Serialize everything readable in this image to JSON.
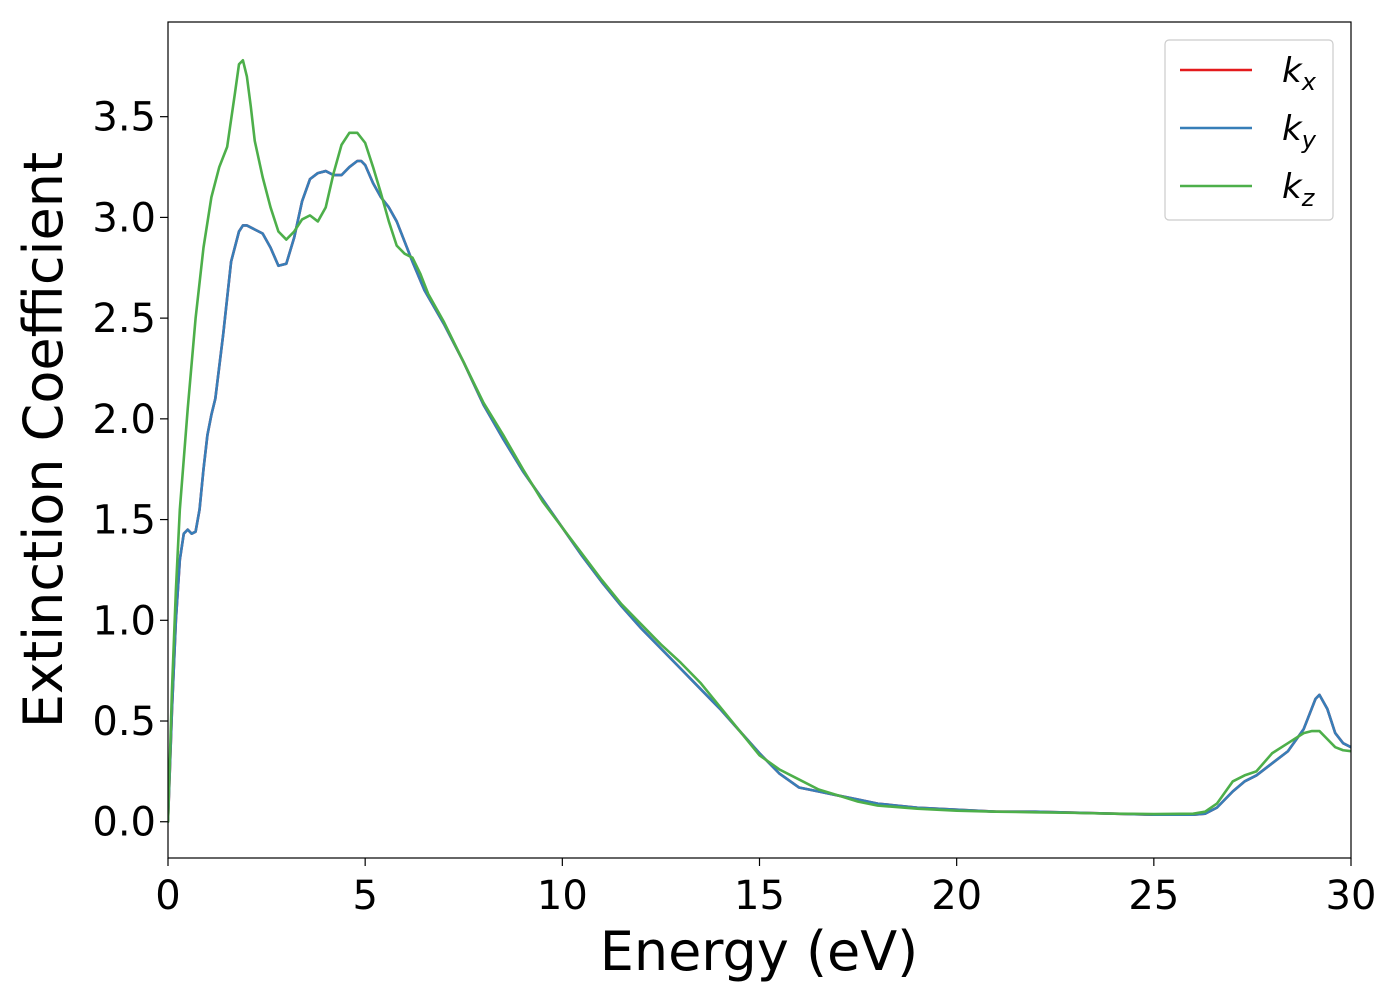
{
  "chart_data": {
    "type": "line",
    "title": "",
    "xlabel": "Energy (eV)",
    "ylabel": "Extinction Coefficient",
    "xlim": [
      0,
      30
    ],
    "ylim": [
      -0.18,
      3.97
    ],
    "xticks": [
      0,
      5,
      10,
      15,
      20,
      25,
      30
    ],
    "xtick_labels": [
      "0",
      "5",
      "10",
      "15",
      "20",
      "25",
      "30"
    ],
    "yticks": [
      0.0,
      0.5,
      1.0,
      1.5,
      2.0,
      2.5,
      3.0,
      3.5
    ],
    "ytick_labels": [
      "0.0",
      "0.5",
      "1.0",
      "1.5",
      "2.0",
      "2.5",
      "3.0",
      "3.5"
    ],
    "grid": false,
    "legend_position": "top-right",
    "series": [
      {
        "name": "k",
        "sub": "x",
        "color": "#e41a1c",
        "x": [
          0,
          0.1,
          0.2,
          0.3,
          0.4,
          0.5,
          0.6,
          0.7,
          0.8,
          0.9,
          1.0,
          1.1,
          1.2,
          1.4,
          1.6,
          1.8,
          1.9,
          2.0,
          2.2,
          2.4,
          2.6,
          2.8,
          3.0,
          3.2,
          3.4,
          3.6,
          3.8,
          4.0,
          4.2,
          4.4,
          4.6,
          4.8,
          4.9,
          5.0,
          5.2,
          5.4,
          5.6,
          5.8,
          6.0,
          6.2,
          6.5,
          7.0,
          7.5,
          8.0,
          8.5,
          9.0,
          9.5,
          10,
          10.5,
          11,
          11.5,
          12,
          12.5,
          13,
          13.5,
          14,
          14.5,
          15,
          15.5,
          16,
          16.5,
          17,
          17.5,
          18,
          19,
          20,
          21,
          22,
          23,
          24,
          25,
          26,
          26.3,
          26.6,
          27,
          27.3,
          27.6,
          28,
          28.4,
          28.8,
          29.0,
          29.1,
          29.2,
          29.4,
          29.6,
          29.8,
          30
        ],
        "y": [
          0.0,
          0.55,
          1.0,
          1.3,
          1.43,
          1.45,
          1.43,
          1.44,
          1.55,
          1.75,
          1.92,
          2.02,
          2.1,
          2.42,
          2.78,
          2.93,
          2.96,
          2.96,
          2.94,
          2.92,
          2.85,
          2.76,
          2.77,
          2.9,
          3.08,
          3.19,
          3.22,
          3.23,
          3.21,
          3.21,
          3.25,
          3.28,
          3.28,
          3.26,
          3.17,
          3.1,
          3.05,
          2.98,
          2.88,
          2.78,
          2.64,
          2.47,
          2.28,
          2.07,
          1.9,
          1.74,
          1.6,
          1.46,
          1.32,
          1.19,
          1.07,
          0.96,
          0.86,
          0.76,
          0.66,
          0.56,
          0.45,
          0.34,
          0.24,
          0.17,
          0.15,
          0.13,
          0.11,
          0.09,
          0.07,
          0.06,
          0.05,
          0.05,
          0.045,
          0.04,
          0.035,
          0.035,
          0.04,
          0.07,
          0.15,
          0.2,
          0.23,
          0.29,
          0.35,
          0.46,
          0.56,
          0.61,
          0.63,
          0.56,
          0.44,
          0.39,
          0.37
        ]
      },
      {
        "name": "k",
        "sub": "y",
        "color": "#377eb8",
        "x": [
          0,
          0.1,
          0.2,
          0.3,
          0.4,
          0.5,
          0.6,
          0.7,
          0.8,
          0.9,
          1.0,
          1.1,
          1.2,
          1.4,
          1.6,
          1.8,
          1.9,
          2.0,
          2.2,
          2.4,
          2.6,
          2.8,
          3.0,
          3.2,
          3.4,
          3.6,
          3.8,
          4.0,
          4.2,
          4.4,
          4.6,
          4.8,
          4.9,
          5.0,
          5.2,
          5.4,
          5.6,
          5.8,
          6.0,
          6.2,
          6.5,
          7.0,
          7.5,
          8.0,
          8.5,
          9.0,
          9.5,
          10,
          10.5,
          11,
          11.5,
          12,
          12.5,
          13,
          13.5,
          14,
          14.5,
          15,
          15.5,
          16,
          16.5,
          17,
          17.5,
          18,
          19,
          20,
          21,
          22,
          23,
          24,
          25,
          26,
          26.3,
          26.6,
          27,
          27.3,
          27.6,
          28,
          28.4,
          28.8,
          29.0,
          29.1,
          29.2,
          29.4,
          29.6,
          29.8,
          30
        ],
        "y": [
          0.0,
          0.55,
          1.0,
          1.3,
          1.43,
          1.45,
          1.43,
          1.44,
          1.55,
          1.75,
          1.92,
          2.02,
          2.1,
          2.42,
          2.78,
          2.93,
          2.96,
          2.96,
          2.94,
          2.92,
          2.85,
          2.76,
          2.77,
          2.9,
          3.08,
          3.19,
          3.22,
          3.23,
          3.21,
          3.21,
          3.25,
          3.28,
          3.28,
          3.26,
          3.17,
          3.1,
          3.05,
          2.98,
          2.88,
          2.78,
          2.64,
          2.47,
          2.28,
          2.07,
          1.9,
          1.74,
          1.6,
          1.46,
          1.32,
          1.19,
          1.07,
          0.96,
          0.86,
          0.76,
          0.66,
          0.56,
          0.45,
          0.34,
          0.24,
          0.17,
          0.15,
          0.13,
          0.11,
          0.09,
          0.07,
          0.06,
          0.05,
          0.05,
          0.045,
          0.04,
          0.035,
          0.035,
          0.04,
          0.07,
          0.15,
          0.2,
          0.23,
          0.29,
          0.35,
          0.46,
          0.56,
          0.61,
          0.63,
          0.56,
          0.44,
          0.39,
          0.37
        ]
      },
      {
        "name": "k",
        "sub": "z",
        "color": "#4daf4a",
        "x": [
          0,
          0.1,
          0.2,
          0.3,
          0.5,
          0.7,
          0.9,
          1.1,
          1.3,
          1.5,
          1.7,
          1.8,
          1.9,
          2.0,
          2.1,
          2.2,
          2.4,
          2.6,
          2.8,
          3.0,
          3.2,
          3.4,
          3.6,
          3.8,
          4.0,
          4.2,
          4.4,
          4.6,
          4.8,
          5.0,
          5.2,
          5.4,
          5.6,
          5.8,
          6.0,
          6.2,
          6.4,
          6.6,
          7.0,
          7.5,
          8.0,
          8.5,
          9.0,
          9.5,
          10,
          10.5,
          11,
          11.5,
          12,
          12.5,
          13,
          13.5,
          14,
          14.5,
          15,
          15.5,
          16,
          16.5,
          17,
          17.5,
          18,
          19,
          20,
          21,
          22,
          23,
          24,
          25,
          26,
          26.3,
          26.6,
          27,
          27.3,
          27.6,
          28,
          28.4,
          28.8,
          29.0,
          29.2,
          29.4,
          29.6,
          29.8,
          30
        ],
        "y": [
          0.0,
          0.65,
          1.15,
          1.55,
          2.05,
          2.5,
          2.85,
          3.1,
          3.25,
          3.35,
          3.62,
          3.76,
          3.78,
          3.7,
          3.55,
          3.38,
          3.2,
          3.05,
          2.93,
          2.89,
          2.93,
          2.99,
          3.01,
          2.98,
          3.05,
          3.22,
          3.36,
          3.42,
          3.42,
          3.37,
          3.25,
          3.12,
          2.98,
          2.86,
          2.82,
          2.8,
          2.72,
          2.62,
          2.48,
          2.28,
          2.08,
          1.92,
          1.75,
          1.59,
          1.46,
          1.33,
          1.2,
          1.08,
          0.98,
          0.88,
          0.79,
          0.69,
          0.57,
          0.45,
          0.33,
          0.26,
          0.21,
          0.16,
          0.13,
          0.1,
          0.08,
          0.065,
          0.055,
          0.05,
          0.047,
          0.044,
          0.04,
          0.038,
          0.04,
          0.05,
          0.09,
          0.2,
          0.23,
          0.25,
          0.34,
          0.39,
          0.44,
          0.45,
          0.45,
          0.41,
          0.37,
          0.355,
          0.35
        ]
      }
    ]
  }
}
